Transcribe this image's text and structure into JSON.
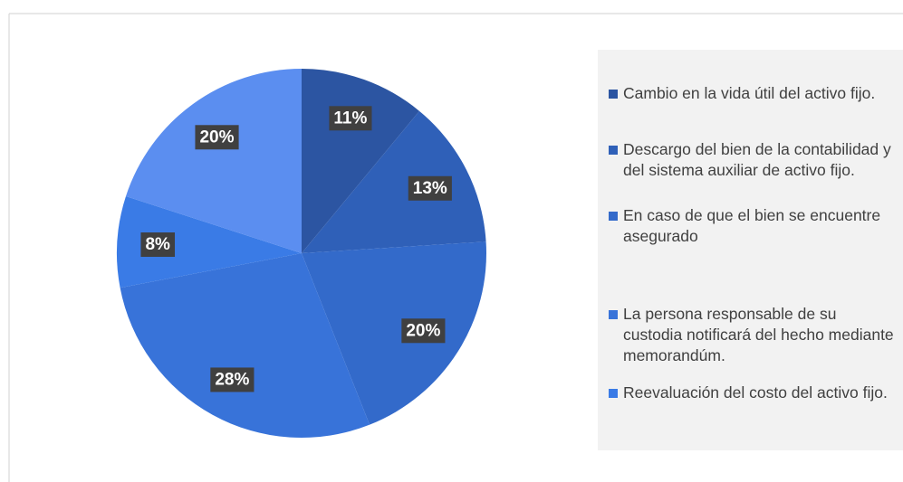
{
  "chart_data": {
    "type": "pie",
    "categories": [
      "Cambio en la vida útil del activo fijo.",
      "Descargo del bien de la contabilidad y del sistema auxiliar de activo fijo.",
      "En caso de que el bien se encuentre asegurado",
      "La persona responsable de su custodia notificará del hecho mediante memorandúm.",
      "Reevaluación del costo del activo fijo.",
      null
    ],
    "values": [
      11,
      13,
      20,
      28,
      8,
      20
    ],
    "value_labels": [
      "11%",
      "13%",
      "20%",
      "28%",
      "8%",
      "20%"
    ],
    "colors": [
      "#2c55a2",
      "#2f60b8",
      "#336aca",
      "#3873d9",
      "#3a7be6",
      "#5b8ef0"
    ]
  }
}
